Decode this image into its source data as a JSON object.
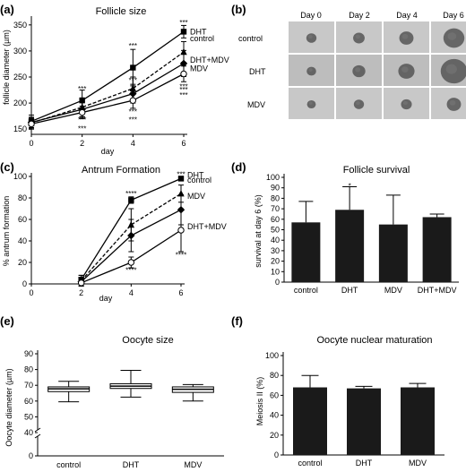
{
  "panel_labels": [
    "(a)",
    "(b)",
    "(c)",
    "(d)",
    "(e)",
    "(f)"
  ],
  "chart_data": [
    {
      "type": "line",
      "title": "Follicle size",
      "xlabel": "day",
      "ylabel": "follicle diameter (µm)",
      "x": [
        0,
        2,
        4,
        6
      ],
      "xlim": [
        0,
        6
      ],
      "ylim": [
        140,
        360
      ],
      "yticks": [
        150,
        200,
        250,
        300,
        350
      ],
      "series": [
        {
          "name": "DHT",
          "values": [
            165,
            205,
            268,
            337
          ],
          "err": [
            12,
            20,
            35,
            12
          ],
          "style": "solid",
          "marker": "square"
        },
        {
          "name": "control",
          "values": [
            162,
            192,
            228,
            298
          ],
          "err": [
            10,
            18,
            22,
            20
          ],
          "style": "dashed",
          "marker": "triangle"
        },
        {
          "name": "DHT+MDV",
          "values": [
            163,
            188,
            218,
            276
          ],
          "err": [
            10,
            15,
            18,
            25
          ],
          "style": "solid",
          "marker": "diamond"
        },
        {
          "name": "MDV",
          "values": [
            160,
            182,
            205,
            256
          ],
          "err": [
            10,
            12,
            15,
            15
          ],
          "style": "solid",
          "marker": "circle"
        }
      ],
      "annotations": [
        "***",
        "***",
        "***",
        "***",
        "***",
        "***",
        "***",
        "***",
        "***",
        "***",
        "***",
        "***",
        "***"
      ]
    },
    {
      "type": "line",
      "title": "Antrum Formation",
      "xlabel": "day",
      "ylabel": "% antrum formation",
      "x": [
        0,
        2,
        4,
        6
      ],
      "xlim": [
        0,
        6
      ],
      "ylim": [
        0,
        100
      ],
      "yticks": [
        0,
        20,
        40,
        60,
        80,
        100
      ],
      "series": [
        {
          "name": "DHT",
          "values": [
            4,
            78,
            98
          ],
          "x": [
            2,
            4,
            6
          ],
          "err": [
            4,
            3,
            2
          ],
          "style": "solid",
          "marker": "square"
        },
        {
          "name": "control",
          "values": [
            3,
            55,
            84
          ],
          "x": [
            2,
            4,
            6
          ],
          "err": [
            5,
            15,
            8
          ],
          "style": "dashed",
          "marker": "triangle"
        },
        {
          "name": "MDV",
          "values": [
            2,
            45,
            69
          ],
          "x": [
            2,
            4,
            6
          ],
          "err": [
            4,
            15,
            14
          ],
          "style": "solid",
          "marker": "diamond"
        },
        {
          "name": "DHT+MDV",
          "values": [
            1,
            20,
            50
          ],
          "x": [
            2,
            4,
            6
          ],
          "err": [
            2,
            5,
            20
          ],
          "style": "solid",
          "marker": "circle"
        }
      ],
      "annotations": [
        "****",
        "****",
        "****",
        "***"
      ]
    },
    {
      "type": "bar",
      "title": "Follicle survival",
      "ylabel": "survival at day 6 (%)",
      "categories": [
        "control",
        "DHT",
        "MDV",
        "DHT+MDV"
      ],
      "values": [
        57,
        69,
        55,
        62
      ],
      "err": [
        20,
        22,
        28,
        3
      ],
      "ylim": [
        0,
        100
      ],
      "yticks": [
        0,
        10,
        20,
        30,
        40,
        50,
        60,
        70,
        80,
        90,
        100
      ],
      "annotations": [
        "*"
      ]
    },
    {
      "type": "box",
      "title": "Oocyte size",
      "ylabel": "Oocyte diameter (µm)",
      "categories": [
        "control",
        "DHT",
        "MDV"
      ],
      "boxes": [
        {
          "min": 59.5,
          "q1": 66,
          "median": 67.8,
          "q3": 69,
          "max": 72.5
        },
        {
          "min": 62.5,
          "q1": 68,
          "median": 69.5,
          "q3": 71,
          "max": 79.5
        },
        {
          "min": 60,
          "q1": 65.5,
          "median": 67.5,
          "q3": 69,
          "max": 70.5
        }
      ],
      "ylim": [
        0,
        90
      ],
      "yticks": [
        0,
        40,
        50,
        60,
        70,
        80,
        90
      ]
    },
    {
      "type": "bar",
      "title": "Oocyte nuclear maturation",
      "ylabel": "Meiosis II (%)",
      "categories": [
        "control",
        "DHT",
        "MDV"
      ],
      "values": [
        68,
        67,
        68
      ],
      "err": [
        12,
        2,
        4
      ],
      "ylim": [
        0,
        100
      ],
      "yticks": [
        0,
        20,
        40,
        60,
        80,
        100
      ]
    }
  ],
  "image_panel": {
    "columns": [
      "Day 0",
      "Day 2",
      "Day 4",
      "Day 6"
    ],
    "rows": [
      "control",
      "DHT",
      "MDV"
    ],
    "follicle_scale": [
      [
        0.3,
        0.34,
        0.42,
        0.62
      ],
      [
        0.28,
        0.38,
        0.48,
        0.78
      ],
      [
        0.26,
        0.3,
        0.32,
        0.42
      ]
    ]
  }
}
